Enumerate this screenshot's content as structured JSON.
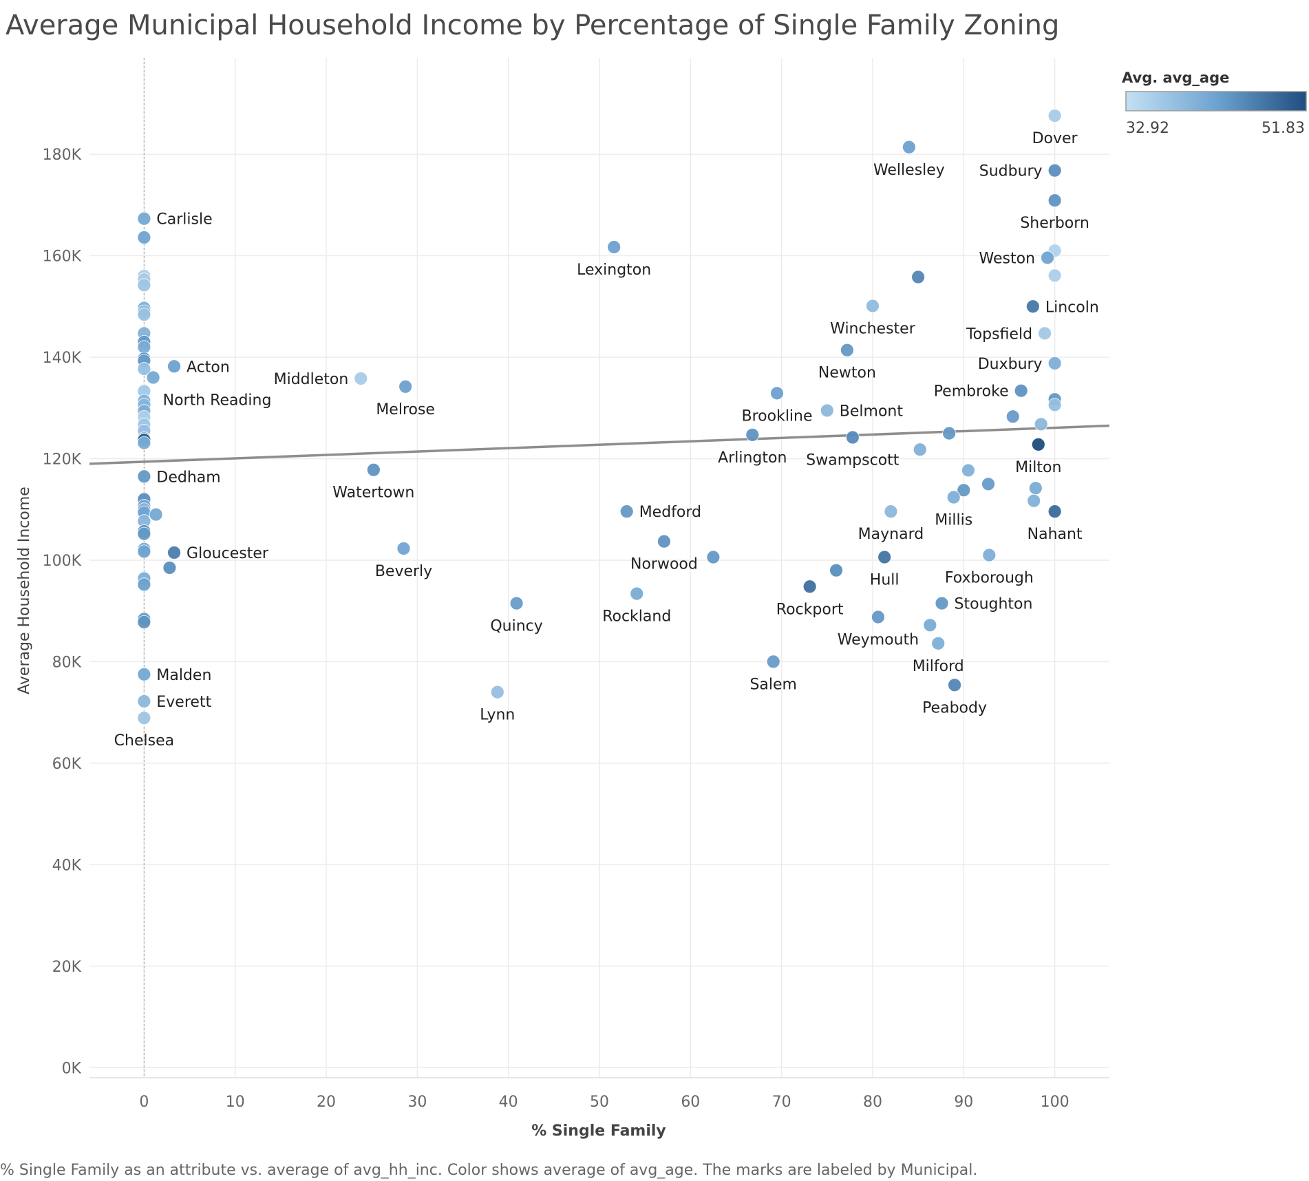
{
  "chart_data": {
    "type": "scatter",
    "title": "Average Municipal Household Income by Percentage of Single Family Zoning",
    "xlabel": "% Single Family",
    "ylabel": "Average Household Income",
    "xlim": [
      -6,
      106
    ],
    "ylim": [
      -2000,
      199000
    ],
    "x_ticks": [
      0,
      10,
      20,
      30,
      40,
      50,
      60,
      70,
      80,
      90,
      100
    ],
    "y_ticks": [
      0,
      20000,
      40000,
      60000,
      80000,
      100000,
      120000,
      140000,
      160000,
      180000
    ],
    "y_tick_labels": [
      "0K",
      "20K",
      "40K",
      "60K",
      "80K",
      "100K",
      "120K",
      "140K",
      "160K",
      "180K"
    ],
    "grid": true,
    "zero_reference_line": true,
    "trend_line": {
      "x": [
        -6,
        106
      ],
      "y": [
        119000,
        126500
      ]
    },
    "color_legend": {
      "title": "Avg. avg_age",
      "min_label": "32.92",
      "max_label": "51.83",
      "min_value": 32.92,
      "max_value": 51.83,
      "min_color": "#c4e0f4",
      "max_color": "#1f4e7f",
      "placement": "top-right"
    },
    "caption": "% Single Family as an attribute vs. average of avg_hh_inc.  Color shows average of avg_age.  The marks are labeled by Municipal.",
    "labeled_points": [
      {
        "label": "Carlisle",
        "x": 0,
        "y": 167300,
        "age": 41.5,
        "anchor": "right"
      },
      {
        "label": "Acton",
        "x": 3.3,
        "y": 138200,
        "age": 42.5,
        "anchor": "right"
      },
      {
        "label": "North Reading",
        "x": 1.0,
        "y": 136000,
        "age": 41.5,
        "anchor": "below-right"
      },
      {
        "label": "Dedham",
        "x": 0,
        "y": 116500,
        "age": 43.5,
        "anchor": "right"
      },
      {
        "label": "Gloucester",
        "x": 3.3,
        "y": 101500,
        "age": 46.5,
        "anchor": "right"
      },
      {
        "label": "Malden",
        "x": 0,
        "y": 77500,
        "age": 41.5,
        "anchor": "right"
      },
      {
        "label": "Everett",
        "x": 0,
        "y": 72200,
        "age": 39.0,
        "anchor": "right"
      },
      {
        "label": "Chelsea",
        "x": 0,
        "y": 68900,
        "age": 37.0,
        "anchor": "below"
      },
      {
        "label": "Middleton",
        "x": 23.8,
        "y": 135800,
        "age": 36.0,
        "anchor": "left"
      },
      {
        "label": "Melrose",
        "x": 28.7,
        "y": 134200,
        "age": 42.5,
        "anchor": "below"
      },
      {
        "label": "Watertown",
        "x": 25.2,
        "y": 117800,
        "age": 44.0,
        "anchor": "below"
      },
      {
        "label": "Beverly",
        "x": 28.5,
        "y": 102300,
        "age": 42.0,
        "anchor": "below"
      },
      {
        "label": "Lexington",
        "x": 51.6,
        "y": 161700,
        "age": 42.5,
        "anchor": "below"
      },
      {
        "label": "Quincy",
        "x": 40.9,
        "y": 91500,
        "age": 43.0,
        "anchor": "below"
      },
      {
        "label": "Lynn",
        "x": 38.8,
        "y": 74000,
        "age": 38.0,
        "anchor": "below"
      },
      {
        "label": "Medford",
        "x": 53.0,
        "y": 109600,
        "age": 43.5,
        "anchor": "right"
      },
      {
        "label": "Norwood",
        "x": 57.1,
        "y": 103700,
        "age": 44.0,
        "anchor": "below"
      },
      {
        "label": "Rockland",
        "x": 54.1,
        "y": 93400,
        "age": 41.0,
        "anchor": "below"
      },
      {
        "label": "Brookline",
        "x": 69.5,
        "y": 132900,
        "age": 42.5,
        "anchor": "below"
      },
      {
        "label": "Arlington",
        "x": 66.8,
        "y": 124700,
        "age": 44.0,
        "anchor": "below"
      },
      {
        "label": "Salem",
        "x": 69.1,
        "y": 80000,
        "age": 43.0,
        "anchor": "below"
      },
      {
        "label": "Belmont",
        "x": 75.0,
        "y": 129500,
        "age": 39.0,
        "anchor": "right"
      },
      {
        "label": "Rockport",
        "x": 73.1,
        "y": 94800,
        "age": 48.0,
        "anchor": "below"
      },
      {
        "label": "Wellesley",
        "x": 84.0,
        "y": 181400,
        "age": 42.5,
        "anchor": "below"
      },
      {
        "label": "Winchester",
        "x": 80.0,
        "y": 150100,
        "age": 38.5,
        "anchor": "below"
      },
      {
        "label": "Newton",
        "x": 77.2,
        "y": 141400,
        "age": 43.5,
        "anchor": "below"
      },
      {
        "label": "Swampscott",
        "x": 77.8,
        "y": 124200,
        "age": 45.0,
        "anchor": "below"
      },
      {
        "label": "Maynard",
        "x": 82.0,
        "y": 109600,
        "age": 39.0,
        "anchor": "below"
      },
      {
        "label": "Hull",
        "x": 81.3,
        "y": 100600,
        "age": 47.5,
        "anchor": "below"
      },
      {
        "label": "Weymouth",
        "x": 80.6,
        "y": 88800,
        "age": 43.5,
        "anchor": "below"
      },
      {
        "label": "Millis",
        "x": 88.9,
        "y": 112400,
        "age": 40.5,
        "anchor": "below"
      },
      {
        "label": "Foxborough",
        "x": 92.8,
        "y": 101000,
        "age": 40.5,
        "anchor": "below"
      },
      {
        "label": "Stoughton",
        "x": 87.6,
        "y": 91500,
        "age": 43.5,
        "anchor": "right"
      },
      {
        "label": "Milford",
        "x": 87.2,
        "y": 83600,
        "age": 40.5,
        "anchor": "below"
      },
      {
        "label": "Peabody",
        "x": 89.0,
        "y": 75400,
        "age": 45.5,
        "anchor": "below"
      },
      {
        "label": "Pembroke",
        "x": 96.3,
        "y": 133400,
        "age": 44.0,
        "anchor": "left"
      },
      {
        "label": "Milton",
        "x": 98.2,
        "y": 122800,
        "age": 51.83,
        "anchor": "below"
      },
      {
        "label": "Nahant",
        "x": 100,
        "y": 109600,
        "age": 48.5,
        "anchor": "below"
      },
      {
        "label": "Dover",
        "x": 100,
        "y": 187600,
        "age": 36.0,
        "anchor": "below"
      },
      {
        "label": "Sudbury",
        "x": 100,
        "y": 176800,
        "age": 44.5,
        "anchor": "left"
      },
      {
        "label": "Sherborn",
        "x": 100,
        "y": 170900,
        "age": 44.0,
        "anchor": "below"
      },
      {
        "label": "Weston",
        "x": 99.2,
        "y": 159600,
        "age": 42.0,
        "anchor": "left"
      },
      {
        "label": "Lincoln",
        "x": 97.6,
        "y": 150000,
        "age": 47.0,
        "anchor": "right"
      },
      {
        "label": "Topsfield",
        "x": 98.9,
        "y": 144700,
        "age": 36.5,
        "anchor": "left"
      },
      {
        "label": "Duxbury",
        "x": 100,
        "y": 138800,
        "age": 40.5,
        "anchor": "left"
      }
    ],
    "unlabeled_points": [
      {
        "x": 0,
        "y": 163600,
        "age": 42.0
      },
      {
        "x": 0,
        "y": 156000,
        "age": 35.5
      },
      {
        "x": 0,
        "y": 155300,
        "age": 36.0
      },
      {
        "x": 0,
        "y": 154200,
        "age": 37.0
      },
      {
        "x": 0,
        "y": 149700,
        "age": 40.0
      },
      {
        "x": 0,
        "y": 149000,
        "age": 39.0
      },
      {
        "x": 0,
        "y": 148400,
        "age": 37.5
      },
      {
        "x": 0,
        "y": 144700,
        "age": 40.0
      },
      {
        "x": 0,
        "y": 143000,
        "age": 43.5
      },
      {
        "x": 0,
        "y": 142000,
        "age": 41.0
      },
      {
        "x": 0,
        "y": 139700,
        "age": 44.5
      },
      {
        "x": 0,
        "y": 139300,
        "age": 43.0
      },
      {
        "x": 0,
        "y": 137700,
        "age": 38.0
      },
      {
        "x": 0,
        "y": 133300,
        "age": 36.5
      },
      {
        "x": 0,
        "y": 131400,
        "age": 40.0
      },
      {
        "x": 0,
        "y": 130600,
        "age": 39.5
      },
      {
        "x": 0,
        "y": 129400,
        "age": 40.5
      },
      {
        "x": 0,
        "y": 128200,
        "age": 35.5
      },
      {
        "x": 0,
        "y": 126700,
        "age": 37.0
      },
      {
        "x": 0,
        "y": 125500,
        "age": 38.0
      },
      {
        "x": 0,
        "y": 124000,
        "age": 38.5
      },
      {
        "x": 0,
        "y": 123700,
        "age": 50.0
      },
      {
        "x": 0,
        "y": 123100,
        "age": 41.0
      },
      {
        "x": 0,
        "y": 112000,
        "age": 44.5
      },
      {
        "x": 0,
        "y": 110700,
        "age": 41.5
      },
      {
        "x": 0,
        "y": 110000,
        "age": 40.0
      },
      {
        "x": 0,
        "y": 109400,
        "age": 42.0
      },
      {
        "x": 0,
        "y": 107700,
        "age": 39.5
      },
      {
        "x": 0,
        "y": 105700,
        "age": 44.0
      },
      {
        "x": 0,
        "y": 105200,
        "age": 43.5
      },
      {
        "x": 0,
        "y": 102200,
        "age": 41.0
      },
      {
        "x": 0,
        "y": 101700,
        "age": 42.0
      },
      {
        "x": 0,
        "y": 96400,
        "age": 40.5
      },
      {
        "x": 0,
        "y": 95200,
        "age": 42.5
      },
      {
        "x": 0,
        "y": 88400,
        "age": 43.0
      },
      {
        "x": 0,
        "y": 87800,
        "age": 44.0
      },
      {
        "x": 1.3,
        "y": 109000,
        "age": 41.5
      },
      {
        "x": 2.8,
        "y": 98500,
        "age": 44.5
      },
      {
        "x": 85.0,
        "y": 155800,
        "age": 45.5
      },
      {
        "x": 88.4,
        "y": 125000,
        "age": 43.5
      },
      {
        "x": 85.2,
        "y": 121800,
        "age": 40.0
      },
      {
        "x": 90.5,
        "y": 117700,
        "age": 40.0
      },
      {
        "x": 92.7,
        "y": 115000,
        "age": 43.0
      },
      {
        "x": 90.0,
        "y": 113800,
        "age": 43.5
      },
      {
        "x": 76.0,
        "y": 98000,
        "age": 44.5
      },
      {
        "x": 62.5,
        "y": 100600,
        "age": 43.5
      },
      {
        "x": 86.3,
        "y": 87200,
        "age": 41.0
      },
      {
        "x": 95.4,
        "y": 128300,
        "age": 43.0
      },
      {
        "x": 98.5,
        "y": 126800,
        "age": 39.0
      },
      {
        "x": 100,
        "y": 161000,
        "age": 35.0
      },
      {
        "x": 100,
        "y": 156100,
        "age": 35.5
      },
      {
        "x": 100,
        "y": 131700,
        "age": 43.5
      },
      {
        "x": 100,
        "y": 130600,
        "age": 38.0
      },
      {
        "x": 97.9,
        "y": 114200,
        "age": 41.0
      },
      {
        "x": 97.7,
        "y": 111700,
        "age": 40.0
      }
    ]
  }
}
